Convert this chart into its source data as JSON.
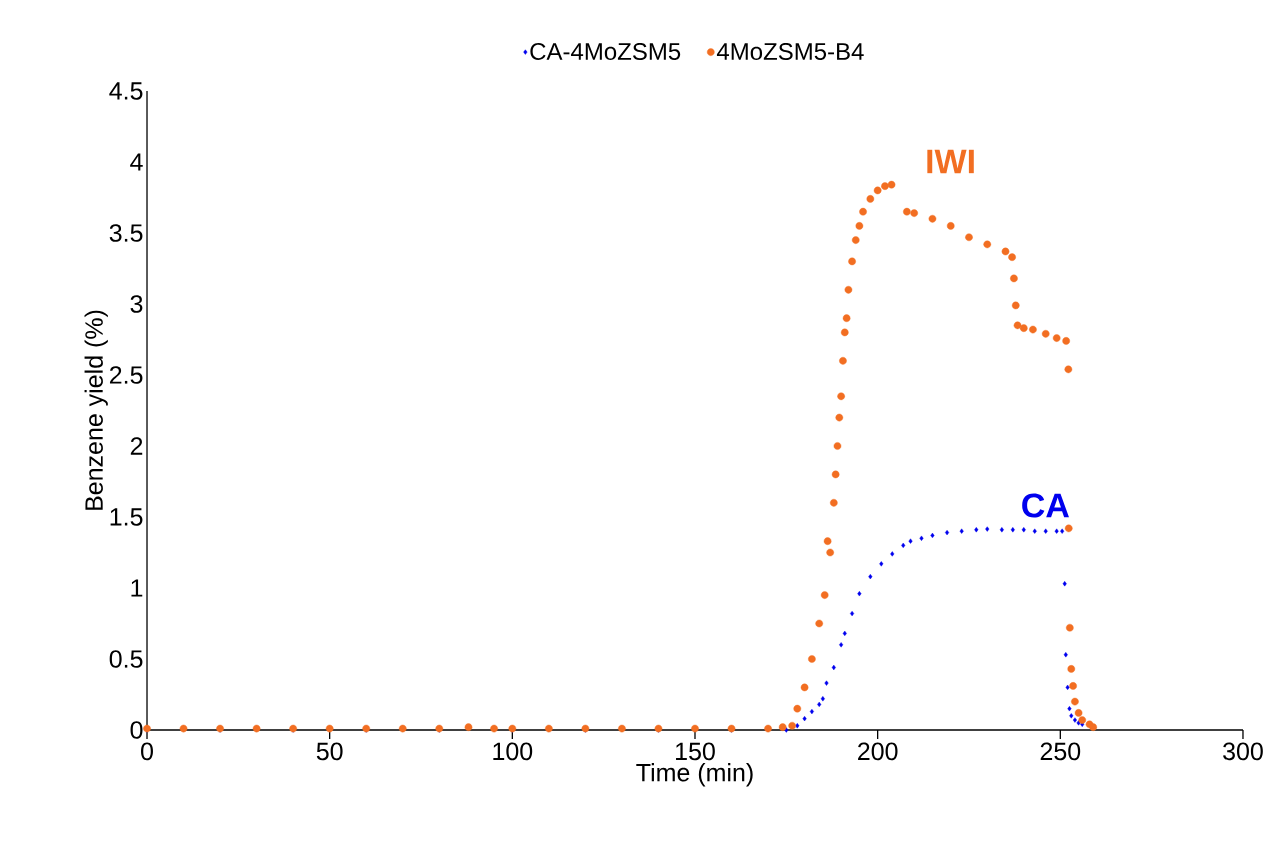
{
  "chart_data": {
    "type": "scatter",
    "xlabel": "Time (min)",
    "ylabel": "Benzene yield  (%)",
    "xlim": [
      0,
      300
    ],
    "xticks": [
      0,
      50,
      100,
      150,
      200,
      250,
      300
    ],
    "ylim": [
      0,
      4.5
    ],
    "yticks": [
      0,
      0.5,
      1,
      1.5,
      2,
      2.5,
      3,
      3.5,
      4,
      4.5
    ],
    "legend": "top",
    "marker": "circle",
    "grid": false,
    "series": [
      {
        "name": "CA-4MoZSM5",
        "color": "#0000ee",
        "marker": "diamond",
        "x": [
          0,
          20,
          40,
          60,
          80,
          100,
          120,
          140,
          160,
          175,
          176,
          178,
          180,
          182,
          184,
          185,
          186,
          188,
          190,
          191,
          193,
          195,
          198,
          201,
          204,
          207,
          209,
          212,
          215,
          219,
          223,
          227,
          230,
          234,
          237,
          240,
          243,
          246,
          249,
          250.5,
          251.2,
          251.5,
          252,
          252.5,
          253,
          254,
          255,
          256
        ],
        "values": [
          0,
          0,
          0,
          0,
          0,
          0,
          0,
          0,
          0,
          0,
          null,
          0.03,
          0.08,
          0.13,
          0.18,
          0.22,
          0.33,
          0.44,
          0.6,
          0.68,
          0.82,
          0.96,
          1.08,
          1.17,
          1.24,
          1.3,
          1.33,
          1.35,
          1.37,
          1.39,
          1.4,
          1.41,
          1.415,
          1.41,
          1.41,
          1.41,
          1.4,
          1.4,
          1.4,
          1.4,
          1.03,
          0.53,
          0.3,
          0.15,
          0.1,
          0.07,
          0.05,
          0.04
        ]
      },
      {
        "name": "4MoZSM5-B4",
        "color": "#f26e22",
        "x": [
          0,
          10,
          20,
          30,
          40,
          50,
          60,
          70,
          80,
          88,
          95,
          100,
          110,
          120,
          130,
          140,
          150,
          160,
          170,
          174,
          176.6,
          178,
          180,
          182,
          184,
          185.5,
          186.3,
          187,
          188,
          188.5,
          189,
          189.5,
          190,
          190.5,
          191,
          191.5,
          192,
          193,
          194,
          195,
          196,
          198,
          200,
          202,
          203.8,
          208,
          210,
          215,
          220,
          225,
          230,
          235,
          236.8,
          237.3,
          237.8,
          238.3,
          240,
          242.5,
          246,
          249,
          251.6,
          252.2,
          252.3,
          252.6,
          253,
          253.5,
          254,
          255,
          256,
          258,
          259
        ],
        "values": [
          0.01,
          0.01,
          0.01,
          0.01,
          0.01,
          0.01,
          0.01,
          0.01,
          0.01,
          0.02,
          0.01,
          0.01,
          0.01,
          0.01,
          0.01,
          0.01,
          0.01,
          0.01,
          0.01,
          0.02,
          0.03,
          0.15,
          0.3,
          0.5,
          0.75,
          0.95,
          1.33,
          1.25,
          1.6,
          1.8,
          2.0,
          2.2,
          2.35,
          2.6,
          2.8,
          2.9,
          3.1,
          3.3,
          3.45,
          3.55,
          3.65,
          3.74,
          3.8,
          3.83,
          3.84,
          3.65,
          3.64,
          3.6,
          3.55,
          3.47,
          3.42,
          3.37,
          3.33,
          3.18,
          2.99,
          2.85,
          2.83,
          2.82,
          2.79,
          2.76,
          2.74,
          2.54,
          1.42,
          0.72,
          0.43,
          0.31,
          0.2,
          0.12,
          0.07,
          0.04,
          0.02
        ]
      }
    ],
    "annotations": [
      "CA",
      "IWI"
    ]
  }
}
